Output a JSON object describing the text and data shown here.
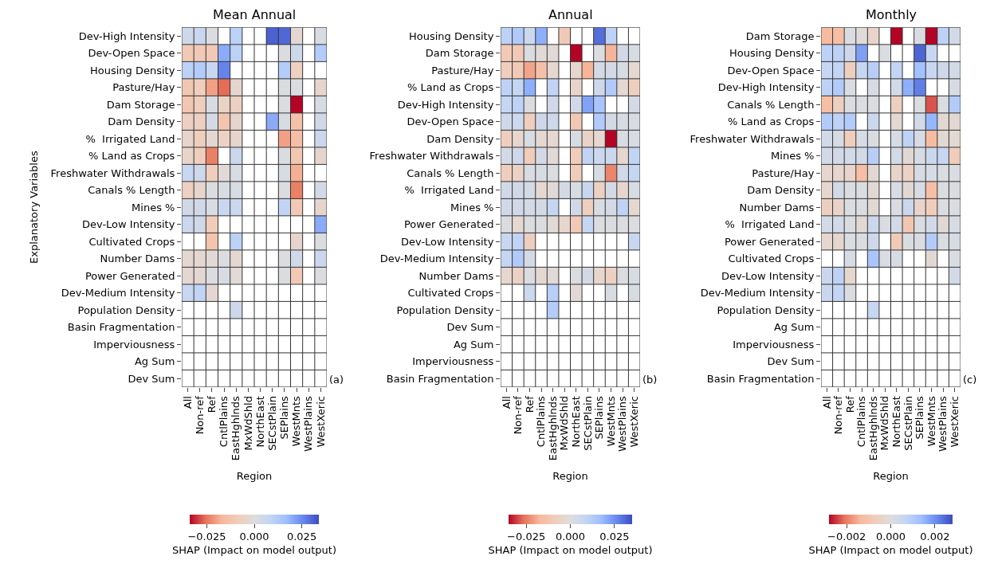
{
  "chart_data": [
    {
      "type": "heatmap",
      "title": "Mean Annual",
      "xlabel": "Region",
      "ylabel": "Explanatory Variables",
      "clabel": "SHAP (Impact on model output)",
      "annotations": [
        "(a)"
      ],
      "grid": true,
      "categories": [
        "All",
        "Non-ref",
        "Ref",
        "CntlPlains",
        "EastHghlnds",
        "MxWdShld",
        "NorthEast",
        "SECstPlain",
        "SEPlains",
        "WestMnts",
        "WestPlains",
        "WestXeric"
      ],
      "y_categories": [
        "Dev-High Intensity",
        "Dev-Open Space",
        "Housing Density",
        "Pasture/Hay",
        "Dam Storage",
        "Dam Density",
        "%  Irrigated Land",
        "% Land as Crops",
        "Freshwater Withdrawals",
        "Canals % Length",
        "Mines %",
        "Dev-Low Intensity",
        "Cultivated Crops",
        "Number Dams",
        "Power Generated",
        "Dev-Medium Intensity",
        "Population Density",
        "Basin Fragmentation",
        "Imperviousness",
        "Ag Sum",
        "Dev Sum"
      ],
      "clim": [
        -0.034,
        0.034
      ],
      "cticks": [
        {
          "value": -0.025,
          "label": "−0.025"
        },
        {
          "value": 0,
          "label": "0.000"
        },
        {
          "value": 0.025,
          "label": "0.025"
        }
      ],
      "cells": [
        [
          0.005,
          0.007,
          0.001,
          null,
          0.01,
          null,
          null,
          0.031,
          0.03,
          -0.003,
          null,
          0.002
        ],
        [
          -0.01,
          -0.01,
          -0.01,
          0.02,
          0.01,
          null,
          null,
          null,
          0.001,
          0.005,
          null,
          0.012
        ],
        [
          0.01,
          0.012,
          0.007,
          0.026,
          null,
          null,
          null,
          null,
          0.012,
          -0.007,
          null,
          null
        ],
        [
          -0.011,
          -0.008,
          -0.02,
          -0.026,
          -0.004,
          null,
          null,
          null,
          0.001,
          0.001,
          null,
          -0.004
        ],
        [
          -0.011,
          -0.008,
          0.002,
          -0.006,
          -0.007,
          null,
          null,
          null,
          0.001,
          -0.034,
          null,
          0.002
        ],
        [
          -0.007,
          -0.007,
          0.003,
          -0.012,
          -0.004,
          null,
          null,
          0.02,
          0.002,
          -0.013,
          null,
          0.004
        ],
        [
          -0.004,
          -0.008,
          -0.003,
          -0.006,
          -0.004,
          null,
          null,
          null,
          -0.02,
          -0.014,
          null,
          0.006
        ],
        [
          -0.005,
          -0.008,
          -0.024,
          null,
          0.006,
          null,
          null,
          null,
          0.001,
          -0.011,
          null,
          -0.004
        ],
        [
          0.007,
          0.005,
          -0.008,
          -0.002,
          0.002,
          null,
          null,
          null,
          0.002,
          -0.018,
          null,
          null
        ],
        [
          -0.007,
          -0.004,
          0.001,
          0.002,
          0.002,
          null,
          null,
          null,
          0.001,
          -0.024,
          null,
          0.003
        ],
        [
          0.004,
          0.004,
          0.002,
          0.007,
          0.006,
          null,
          null,
          null,
          0.009,
          -0.01,
          null,
          -0.004
        ],
        [
          0.006,
          0.004,
          -0.009,
          null,
          null,
          null,
          null,
          null,
          null,
          null,
          null,
          0.02
        ],
        [
          null,
          null,
          -0.012,
          null,
          0.01,
          null,
          null,
          null,
          null,
          -0.004,
          null,
          0.001
        ],
        [
          -0.003,
          -0.003,
          -0.002,
          0.001,
          -0.003,
          null,
          null,
          null,
          0.001,
          0.004,
          null,
          0.006
        ],
        [
          -0.003,
          -0.003,
          0.001,
          0.002,
          -0.002,
          null,
          null,
          null,
          0.001,
          -0.01,
          null,
          0.001
        ],
        [
          0.007,
          0.009,
          -0.003,
          null,
          null,
          null,
          null,
          null,
          null,
          null,
          null,
          null
        ],
        [
          null,
          null,
          null,
          null,
          0.005,
          null,
          null,
          null,
          null,
          null,
          null,
          null
        ],
        [
          null,
          null,
          null,
          null,
          null,
          null,
          null,
          null,
          null,
          null,
          null,
          null
        ],
        [
          null,
          null,
          null,
          null,
          null,
          null,
          null,
          null,
          null,
          null,
          null,
          null
        ],
        [
          null,
          null,
          null,
          null,
          null,
          null,
          null,
          null,
          null,
          null,
          null,
          null
        ],
        [
          null,
          null,
          null,
          null,
          null,
          null,
          null,
          null,
          null,
          null,
          null,
          null
        ]
      ]
    },
    {
      "type": "heatmap",
      "title": "Annual",
      "xlabel": "Region",
      "clabel": "SHAP (Impact on model output)",
      "annotations": [
        "(b)"
      ],
      "grid": true,
      "categories": [
        "All",
        "Non-ref",
        "Ref",
        "CntlPlains",
        "EastHghlnds",
        "MxWdShld",
        "NorthEast",
        "SECstPlain",
        "SEPlains",
        "WestMnts",
        "WestPlains",
        "WestXeric"
      ],
      "y_categories": [
        "Housing Density",
        "Dam Storage",
        "Pasture/Hay",
        "% Land as Crops",
        "Dev-High Intensity",
        "Dev-Open Space",
        "Dam Density",
        "Freshwater Withdrawals",
        "Canals % Length",
        "%  Irrigated Land",
        "Mines %",
        "Power Generated",
        "Dev-Low Intensity",
        "Dev-Medium Intensity",
        "Number Dams",
        "Cultivated Crops",
        "Population Density",
        "Dev Sum",
        "Ag Sum",
        "Imperviousness",
        "Basin Fragmentation"
      ],
      "clim": [
        -0.035,
        0.035
      ],
      "cticks": [
        {
          "value": -0.025,
          "label": "−0.025"
        },
        {
          "value": 0,
          "label": "0.000"
        },
        {
          "value": 0.025,
          "label": "0.025"
        }
      ],
      "cells": [
        [
          0.01,
          0.013,
          0.006,
          0.02,
          null,
          -0.01,
          null,
          null,
          0.03,
          0.01,
          null,
          null
        ],
        [
          -0.01,
          -0.01,
          0.001,
          -0.002,
          -0.002,
          null,
          -0.035,
          null,
          0.001,
          -0.018,
          0.004,
          0.002
        ],
        [
          -0.008,
          -0.01,
          -0.02,
          -0.014,
          -0.003,
          null,
          -0.004,
          -0.018,
          0.003,
          0.003,
          0.002,
          -0.003
        ],
        [
          0.01,
          0.008,
          0.02,
          null,
          0.009,
          null,
          -0.005,
          null,
          0.005,
          0.013,
          -0.003,
          -0.008
        ],
        [
          0.008,
          0.01,
          0.001,
          null,
          0.004,
          null,
          0.004,
          0.022,
          0.015,
          null,
          null,
          0.003
        ],
        [
          0.005,
          0.006,
          -0.008,
          0.005,
          0.005,
          null,
          -0.011,
          null,
          0.013,
          0.003,
          0.002,
          0.002
        ],
        [
          -0.008,
          -0.004,
          0.002,
          -0.003,
          -0.003,
          null,
          0.002,
          -0.006,
          -0.003,
          -0.035,
          0.002,
          0.002
        ],
        [
          0.003,
          0.005,
          -0.009,
          0.003,
          -0.002,
          null,
          -0.009,
          0.009,
          0.006,
          0.006,
          -0.004,
          0.009
        ],
        [
          -0.008,
          -0.006,
          0.002,
          0.002,
          0.001,
          null,
          -0.009,
          null,
          0.002,
          -0.024,
          0.004,
          0.008
        ],
        [
          0.004,
          0.004,
          0.003,
          -0.003,
          -0.002,
          0.003,
          0.002,
          0.007,
          -0.007,
          0.003,
          -0.004,
          0.002
        ],
        [
          0.004,
          0.004,
          0.003,
          0.003,
          0.008,
          null,
          0.004,
          -0.008,
          0.002,
          0.003,
          0.01,
          -0.003
        ],
        [
          0.001,
          -0.003,
          0.001,
          0.001,
          -0.002,
          -0.004,
          -0.01,
          0.008,
          0.001,
          0.001,
          0.001,
          0.001
        ],
        [
          0.007,
          0.009,
          -0.008,
          null,
          null,
          null,
          null,
          null,
          null,
          null,
          null,
          0.007
        ],
        [
          0.008,
          0.013,
          0.003,
          null,
          null,
          null,
          null,
          null,
          null,
          null,
          null,
          null
        ],
        [
          -0.004,
          -0.006,
          0.001,
          -0.003,
          -0.002,
          null,
          0.001,
          0.003,
          -0.004,
          -0.007,
          0.001,
          0.002
        ],
        [
          null,
          null,
          0.006,
          null,
          0.011,
          null,
          -0.002,
          null,
          null,
          0.002,
          null,
          0.002
        ],
        [
          null,
          null,
          null,
          null,
          0.012,
          null,
          null,
          null,
          null,
          null,
          null,
          null
        ],
        [
          null,
          null,
          null,
          null,
          null,
          null,
          null,
          null,
          null,
          null,
          null,
          null
        ],
        [
          null,
          null,
          null,
          null,
          null,
          null,
          null,
          null,
          null,
          null,
          null,
          null
        ],
        [
          null,
          null,
          null,
          null,
          null,
          null,
          null,
          null,
          null,
          null,
          null,
          null
        ],
        [
          null,
          null,
          null,
          null,
          null,
          null,
          null,
          null,
          null,
          null,
          null,
          null
        ]
      ]
    },
    {
      "type": "heatmap",
      "title": "Monthly",
      "xlabel": "Region",
      "clabel": "SHAP (Impact on model output)",
      "annotations": [
        "(c)"
      ],
      "grid": true,
      "categories": [
        "All",
        "Non-ref",
        "Ref",
        "CntlPlains",
        "EastHghlnds",
        "MxWdShld",
        "NorthEast",
        "SECstPlain",
        "SEPlains",
        "WestMnts",
        "WestPlains",
        "WestXeric"
      ],
      "y_categories": [
        "Dam Storage",
        "Housing Density",
        "Dev-Open Space",
        "Dev-High Intensity",
        "Canals % Length",
        "% Land as Crops",
        "Freshwater Withdrawals",
        "Mines %",
        "Pasture/Hay",
        "Dam Density",
        "Number Dams",
        "%  Irrigated Land",
        "Power Generated",
        "Cultivated Crops",
        "Dev-Low Intensity",
        "Dev-Medium Intensity",
        "Population Density",
        "Ag Sum",
        "Imperviousness",
        "Dev Sum",
        "Basin Fragmentation"
      ],
      "clim": [
        -0.0028,
        0.0028
      ],
      "cticks": [
        {
          "value": -0.002,
          "label": "−0.002"
        },
        {
          "value": 0,
          "label": "0.000"
        },
        {
          "value": 0.002,
          "label": "0.002"
        }
      ],
      "cells": [
        [
          -0.0013,
          -0.0012,
          0.0001,
          -0.0001,
          -0.0004,
          null,
          -0.0028,
          null,
          0.0001,
          -0.0028,
          0.0008,
          0.0003
        ],
        [
          0.0008,
          0.0008,
          0.0004,
          0.0018,
          null,
          0.0001,
          null,
          null,
          0.0025,
          0.0006,
          null,
          null
        ],
        [
          0.0006,
          0.0007,
          -0.0006,
          0.0006,
          0.0009,
          null,
          0.0007,
          null,
          0.0013,
          0.0006,
          0.0004,
          0.0003
        ],
        [
          0.0008,
          0.001,
          0.0001,
          null,
          0.0002,
          null,
          0.0003,
          0.0016,
          0.0022,
          null,
          null,
          0.0002
        ],
        [
          -0.0012,
          -0.0006,
          0.0001,
          0.0001,
          0.0001,
          null,
          -0.0006,
          null,
          0.0001,
          -0.0023,
          0.0001,
          0.001
        ],
        [
          0.001,
          0.0008,
          0.001,
          null,
          0.0005,
          null,
          -0.0002,
          null,
          0.0003,
          0.0015,
          -0.0002,
          -0.0002
        ],
        [
          0.0003,
          0.0002,
          -0.0007,
          0.0002,
          0.0001,
          null,
          0.0002,
          0.0008,
          0.0002,
          -0.0013,
          -0.0002,
          -0.0002
        ],
        [
          0.0003,
          0.0003,
          0.0003,
          0.0003,
          0.0009,
          null,
          0.0003,
          -0.0002,
          0.0002,
          0.0005,
          0.0006,
          -0.0007
        ],
        [
          -0.0003,
          -0.0003,
          -0.0004,
          -0.0012,
          -0.0002,
          null,
          -0.0004,
          -0.0005,
          0.0002,
          0.0002,
          0.0001,
          0.0001
        ],
        [
          -0.0003,
          0.0003,
          0.0001,
          0.0001,
          -0.0002,
          null,
          0.0002,
          -0.0002,
          0.0002,
          -0.0012,
          0.0001,
          0.0001
        ],
        [
          -0.0006,
          -0.0004,
          0.0001,
          0.0001,
          -0.0002,
          null,
          0.0001,
          0.0005,
          -0.0004,
          -0.0007,
          0.0001,
          0.0001
        ],
        [
          0.0003,
          0.0003,
          0.0001,
          -0.0002,
          0.0005,
          0.0001,
          0.0003,
          -0.0009,
          0.0001,
          0.0003,
          -0.0002,
          0.0002
        ],
        [
          -0.0003,
          -0.0003,
          0.0001,
          0.0001,
          0.0004,
          null,
          -0.0008,
          0.0001,
          0.0001,
          0.001,
          0.0001,
          0.0002
        ],
        [
          null,
          null,
          0.0002,
          null,
          0.0012,
          0.0001,
          0.0002,
          null,
          null,
          -0.0002,
          null,
          0.0001
        ],
        [
          0.0005,
          0.0008,
          -0.0003,
          null,
          null,
          null,
          null,
          null,
          null,
          null,
          null,
          0.0003
        ],
        [
          0.0005,
          0.0007,
          0.0001,
          null,
          null,
          null,
          null,
          null,
          null,
          null,
          null,
          null
        ],
        [
          null,
          null,
          null,
          null,
          0.0006,
          null,
          null,
          null,
          null,
          null,
          null,
          null
        ],
        [
          null,
          null,
          null,
          null,
          null,
          null,
          null,
          null,
          null,
          null,
          null,
          null
        ],
        [
          null,
          null,
          null,
          null,
          null,
          null,
          null,
          null,
          null,
          null,
          null,
          null
        ],
        [
          null,
          null,
          null,
          null,
          null,
          null,
          null,
          null,
          null,
          null,
          null,
          null
        ],
        [
          null,
          null,
          null,
          null,
          null,
          null,
          null,
          null,
          null,
          null,
          null,
          null
        ]
      ]
    }
  ]
}
